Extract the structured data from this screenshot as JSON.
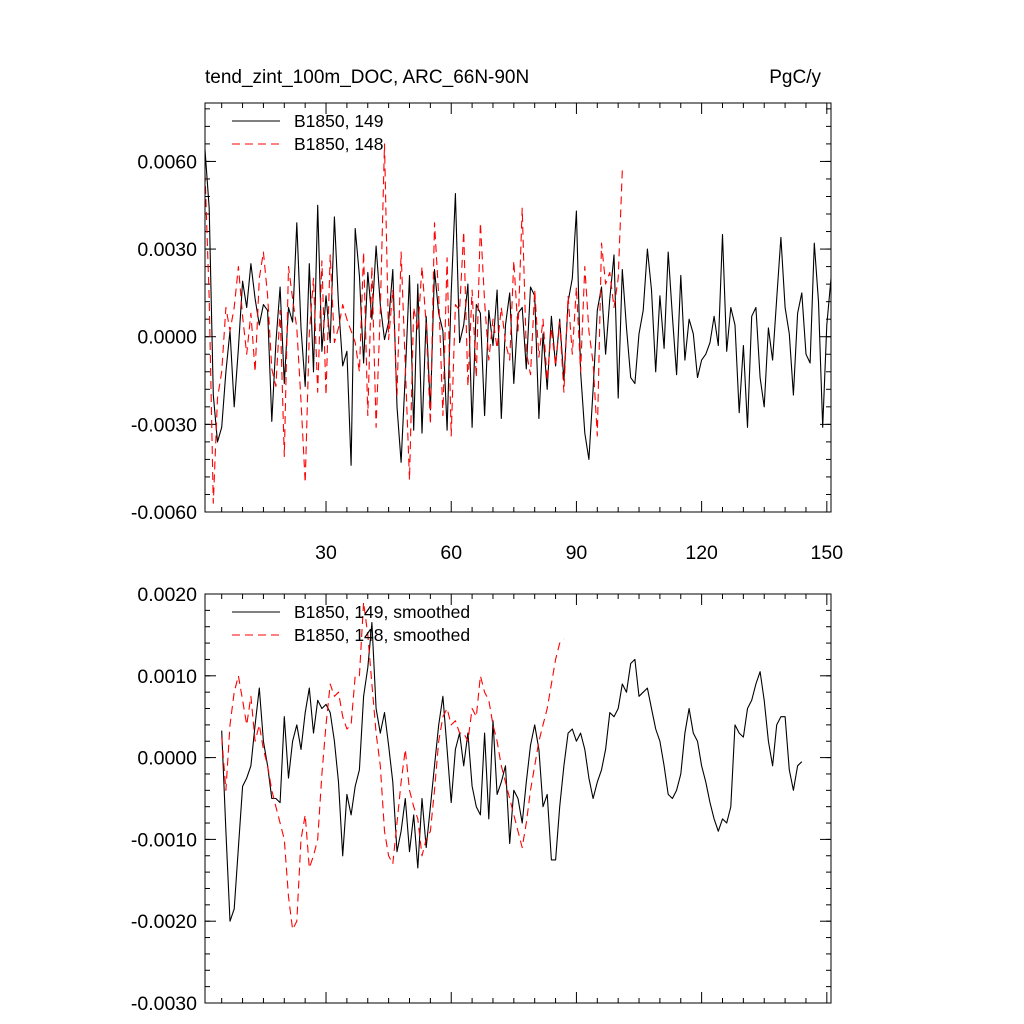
{
  "chart_data": [
    {
      "type": "line",
      "title": "tend_zint_100m_DOC, ARC_66N-90N",
      "units": "PgC/y",
      "xlim": [
        1,
        151
      ],
      "ylim": [
        -0.006,
        0.008
      ],
      "xticks": [
        30,
        60,
        90,
        120,
        150
      ],
      "xtick_labels": [
        "30",
        "60",
        "90",
        "120",
        "150"
      ],
      "yticks": [
        -0.006,
        -0.003,
        0.0,
        0.003,
        0.006
      ],
      "ytick_labels": [
        "-0.0060",
        "-0.0030",
        "0.0000",
        "0.0030",
        "0.0060"
      ],
      "legend_position": "top-left",
      "series": [
        {
          "name": "B1850, 149",
          "color": "#000000",
          "dash": "solid",
          "x_start": 1,
          "values": [
            0.0064,
            0.0044,
            -0.002,
            -0.0036,
            -0.0031,
            -0.0012,
            0.0002,
            -0.0024,
            -0.0004,
            0.0019,
            0.001,
            0.0025,
            0.0013,
            0.0004,
            0.0011,
            0.0009,
            -0.0029,
            -0.0002,
            0.0017,
            -0.0016,
            0.001,
            0.0005,
            0.0039,
            0.0003,
            -0.0017,
            0.0025,
            -0.0012,
            0.0045,
            -0.0005,
            0.0014,
            -0.0002,
            0.0041,
            0.0011,
            -0.001,
            -0.0005,
            -0.0044,
            0.0037,
            0.0021,
            -0.0009,
            0.0022,
            0.0006,
            0.0031,
            0.0011,
            -0.0001,
            0.0005,
            0.0023,
            -0.0024,
            -0.0043,
            -0.0013,
            0.0021,
            -0.0032,
            0.0018,
            -0.0033,
            0.0007,
            -0.0025,
            0.0023,
            0.0008,
            0.0002,
            -0.0032,
            0.0015,
            0.0049,
            -0.0002,
            0.0004,
            0.0018,
            -0.0031,
            0.0011,
            0.0008,
            -0.0027,
            0.0009,
            -0.0003,
            0.0016,
            -0.0028,
            0.0004,
            0.0015,
            -0.0016,
            0.0008,
            0.001,
            -0.0011,
            0.0017,
            0.0014,
            -0.0028,
            0.0001,
            -0.0018,
            0.0007,
            -0.001,
            0.0006,
            -0.0015,
            0.0012,
            0.002,
            0.0043,
            -0.0012,
            -0.0033,
            -0.0042,
            -0.0018,
            0.0009,
            0.0017,
            -0.0006,
            0.0013,
            0.0028,
            -0.0021,
            0.0023,
            0.0003,
            -0.0014,
            -0.0016,
            0.0001,
            0.0009,
            0.003,
            0.0016,
            -0.0012,
            0.0014,
            -0.0004,
            0.0029,
            0.0007,
            -0.0013,
            0.0021,
            -0.0008,
            0.0006,
            0.0001,
            -0.0014,
            -0.0008,
            -0.0006,
            -0.0002,
            0.0007,
            -0.0003,
            0.0035,
            -0.0005,
            0.001,
            0.0004,
            -0.0026,
            -0.0003,
            -0.0031,
            0.0007,
            0.001,
            -0.0014,
            -0.0024,
            0.0003,
            -0.0008,
            0.0013,
            0.0034,
            0.001,
            0.0001,
            -0.002,
            0.0008,
            0.0015,
            -0.0006,
            -0.0009,
            0.0032,
            0.0012,
            -0.0031,
            0.0004,
            0.002
          ]
        },
        {
          "name": "B1850, 148",
          "color": "#ff0000",
          "dash": "dashed",
          "x_start": 1,
          "values": [
            0.0056,
            0.0013,
            -0.0057,
            -0.0021,
            -0.0012,
            0.001,
            0.0002,
            0.001,
            0.0024,
            0.0007,
            -0.0006,
            0.0008,
            -0.0012,
            0.002,
            0.0029,
            0.0014,
            -0.0011,
            -0.0017,
            0.0009,
            -0.0041,
            0.0024,
            0.0013,
            0.0003,
            -0.0022,
            -0.005,
            0.0001,
            0.002,
            -0.0019,
            0.0026,
            -0.002,
            0.0028,
            -0.0002,
            0.0003,
            0.0011,
            0.0006,
            0.0002,
            -0.0002,
            -0.0012,
            0.0029,
            -0.0027,
            0.0024,
            -0.0031,
            0.0009,
            0.0066,
            -0.0001,
            0.0016,
            -0.002,
            0.0029,
            -0.001,
            -0.0049,
            0.001,
            0.0002,
            0.0024,
            0.0004,
            -0.003,
            0.0039,
            0.0014,
            -0.0027,
            0.0027,
            -0.0034,
            0.0011,
            0.0009,
            0.0036,
            -0.0017,
            0.0016,
            -0.0014,
            0.0039,
            0.0012,
            -0.0008,
            0.0006,
            -0.0004,
            0.001,
            -0.0002,
            -0.0008,
            0.0026,
            0.0002,
            0.0044,
            -0.0005,
            -0.0013,
            0.0016,
            -0.0007,
            0.0006,
            -0.0015,
            0.0003,
            -0.001,
            0.0005,
            -0.0019,
            0.0014,
            -0.0006,
            0.0017,
            -0.0012,
            0.0024,
            0.0002,
            -0.0009,
            -0.0034,
            0.0032,
            0.0018,
            0.0022,
            0.001,
            0.002,
            0.0057
          ]
        }
      ]
    },
    {
      "type": "line",
      "title": "",
      "xlim": [
        1,
        151
      ],
      "ylim": [
        -0.003,
        0.002
      ],
      "xticks": [
        30,
        60,
        90,
        120,
        150
      ],
      "yticks": [
        -0.003,
        -0.002,
        -0.001,
        0.0,
        0.001,
        0.002
      ],
      "ytick_labels": [
        "-0.0030",
        "-0.0020",
        "-0.0010",
        "0.0000",
        "0.0010",
        "0.0020"
      ],
      "legend_position": "top-left",
      "series": [
        {
          "name": "B1850, 149, smoothed",
          "color": "#000000",
          "dash": "solid",
          "x_start": 5,
          "values": [
            0.00033,
            -0.0009,
            -0.002,
            -0.00185,
            -0.0011,
            -0.00035,
            -0.00025,
            -0.0001,
            0.0004,
            0.00085,
            0.0002,
            -0.0001,
            -0.0005,
            -0.0005,
            -0.00055,
            0.0005,
            -0.00025,
            0.0002,
            0.0004,
            0.0001,
            0.00055,
            0.00085,
            0.0003,
            0.0007,
            0.0006,
            0.00065,
            0.00055,
            0.0002,
            -0.0003,
            -0.0012,
            -0.00045,
            -0.0007,
            -0.00035,
            -0.00015,
            0.00075,
            0.0011,
            0.00165,
            0.0006,
            0.0003,
            0.00055,
            0.00015,
            -0.0003,
            -0.00115,
            -0.0009,
            -0.0005,
            -0.00115,
            -0.0007,
            -0.00135,
            -0.0005,
            -0.0011,
            -0.0006,
            -0.0001,
            0.0004,
            0.00075,
            0.0001,
            -0.00055,
            0.0001,
            0.0003,
            -0.0001,
            0.0003,
            -0.00035,
            -0.0006,
            -0.0007,
            0.0003,
            -0.00075,
            0.00045,
            -0.00045,
            -0.0003,
            -0.0001,
            -0.00105,
            -0.0004,
            -0.0005,
            -0.0008,
            -0.0003,
            0.00015,
            0.0004,
            0.0001,
            -0.0006,
            -0.00045,
            -0.00125,
            -0.00125,
            -0.0006,
            -0.0001,
            0.0003,
            0.00035,
            0.0002,
            0.0003,
            0.0001,
            -0.00025,
            -0.0005,
            -0.0003,
            -0.00015,
            0.0001,
            0.00055,
            0.0005,
            0.0006,
            0.0009,
            0.0008,
            0.00115,
            0.0012,
            0.00075,
            0.0008,
            0.00085,
            0.0006,
            0.00035,
            0.0002,
            -0.0001,
            -0.00045,
            -0.0005,
            -0.0004,
            -0.0002,
            0.0003,
            0.0006,
            0.0003,
            0.0002,
            -0.0001,
            -0.0003,
            -0.00055,
            -0.00075,
            -0.0009,
            -0.00075,
            -0.0008,
            -0.0006,
            0.0004,
            0.0003,
            0.00025,
            0.0006,
            0.0007,
            0.0009,
            0.00105,
            0.0007,
            0.0002,
            -0.0001,
            0.0004,
            0.0005,
            0.0005,
            -0.00015,
            -0.0004,
            -0.0001,
            -5e-05
          ]
        },
        {
          "name": "B1850, 148, smoothed",
          "color": "#ff0000",
          "dash": "dashed",
          "x_start": 5,
          "values": [
            0.00025,
            -0.0004,
            0.0004,
            0.0008,
            0.001,
            0.0007,
            0.0004,
            0.00075,
            0.0002,
            0.0004,
            0.0001,
            -0.0001,
            -0.0004,
            -0.0006,
            -0.0008,
            -0.001,
            -0.0017,
            -0.0021,
            -0.002,
            -0.001,
            -0.0007,
            -0.00135,
            -0.0012,
            -0.001,
            -0.0002,
            0.0004,
            0.0009,
            0.00075,
            0.0008,
            0.0005,
            0.00035,
            0.0004,
            0.001,
            0.001,
            0.0019,
            0.0015,
            0.0009,
            0.0003,
            -0.0001,
            -0.0009,
            -0.0012,
            -0.0013,
            -0.0008,
            -0.0003,
            0.0001,
            -0.0004,
            -0.0006,
            -0.00075,
            -0.0012,
            -0.001,
            -0.0009,
            -0.0004,
            0.0002,
            0.0005,
            0.0006,
            0.0004,
            0.00045,
            0.0003,
            0.0003,
            0.0002,
            0.0006,
            0.0005,
            0.001,
            0.0008,
            0.0007,
            0.0004,
            0.0002,
            -0.0001,
            -0.0003,
            -0.0005,
            -0.0007,
            -0.0009,
            -0.0011,
            -0.0008,
            -0.0004,
            -0.0001,
            0.0002,
            0.0004,
            0.0006,
            0.0009,
            0.0012,
            0.0014,
            0.00145
          ]
        }
      ]
    }
  ]
}
